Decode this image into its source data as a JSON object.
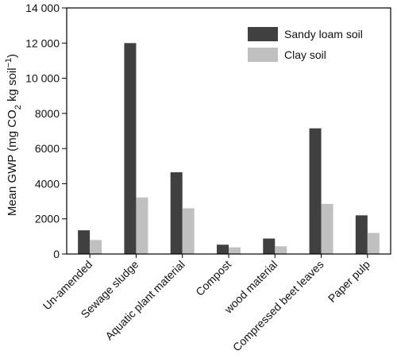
{
  "chart_data": {
    "type": "bar",
    "categories": [
      "Un-amended",
      "Sewage sludge",
      "Aquatic plant material",
      "Compost",
      "wood material",
      "Compressed beet leaves",
      "Paper pulp"
    ],
    "series": [
      {
        "name": "Sandy loam soil",
        "values": [
          1350,
          12000,
          4650,
          530,
          880,
          7150,
          2200
        ],
        "color": "#404040"
      },
      {
        "name": "Clay soil",
        "values": [
          800,
          3220,
          2600,
          380,
          440,
          2850,
          1200
        ],
        "color": "#c0c0c0"
      }
    ],
    "ylabel": {
      "prefix": "Mean GWP (mg CO",
      "sub": "2",
      "middle": " kg soil",
      "sup": "−1",
      "suffix": ")"
    },
    "ylim": [
      0,
      14000
    ],
    "yticks": [
      0,
      2000,
      4000,
      6000,
      8000,
      10000,
      12000,
      14000
    ],
    "ytick_labels": [
      "0",
      "2000",
      "4000",
      "6000",
      "8000",
      "10 000",
      "12 000",
      "14 000"
    ],
    "legend_position": "top-right",
    "grid": false
  }
}
